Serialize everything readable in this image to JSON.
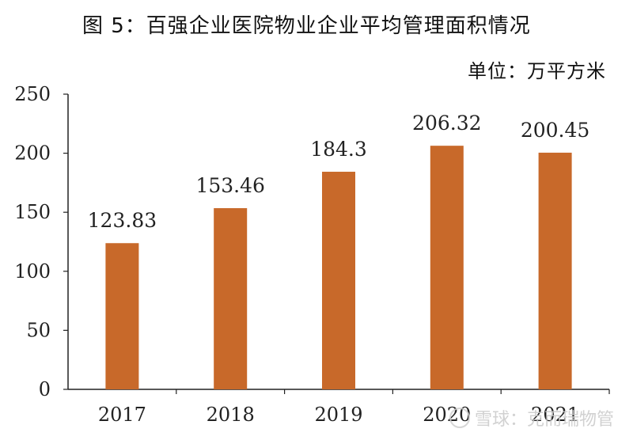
{
  "chart_data": {
    "type": "bar",
    "title": "图 5：百强企业医院物业企业平均管理面积情况",
    "unit_label": "单位：万平方米",
    "categories": [
      "2017",
      "2018",
      "2019",
      "2020",
      "2021"
    ],
    "values": [
      123.83,
      153.46,
      184.3,
      206.32,
      200.45
    ],
    "data_labels": [
      "123.83",
      "153.46",
      "184.3",
      "206.32",
      "200.45"
    ],
    "ylim": [
      0,
      250
    ],
    "yticks": [
      0,
      50,
      100,
      150,
      200,
      250
    ],
    "bar_color": "#c8692a",
    "grid": false,
    "legend": "none"
  },
  "watermark": "雪球：克而瑞物管"
}
